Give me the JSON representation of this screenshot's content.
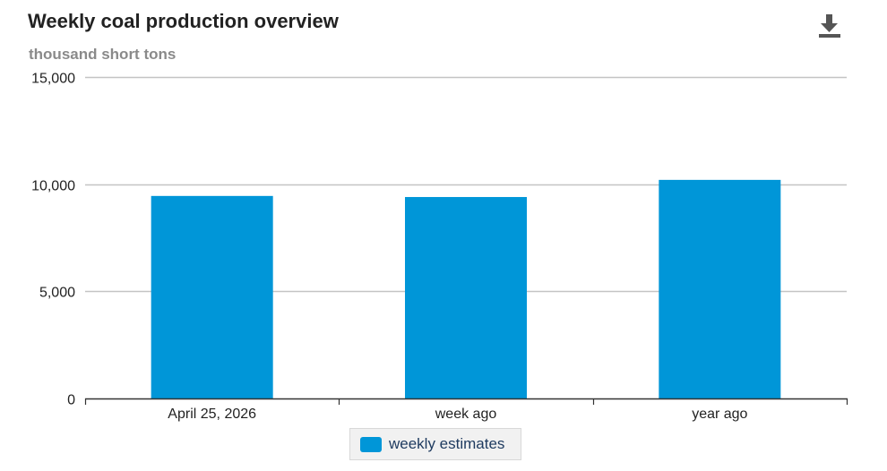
{
  "header": {
    "title": "Weekly coal production overview",
    "subtitle": "thousand short tons",
    "download_icon": "download-icon"
  },
  "colors": {
    "bar": "#0096d8",
    "grid": "#c4c4c4",
    "axis": "#333333",
    "text": "#222222"
  },
  "chart_data": {
    "type": "bar",
    "title": "Weekly coal production overview",
    "ylabel": "thousand short tons",
    "xlabel": "",
    "categories": [
      "April 25, 2026",
      "week ago",
      "year ago"
    ],
    "series": [
      {
        "name": "weekly estimates",
        "values": [
          9450,
          9400,
          10200
        ]
      }
    ],
    "ylim": [
      0,
      15000
    ],
    "yticks": [
      0,
      5000,
      10000,
      15000
    ],
    "ytick_labels": [
      "0",
      "5,000",
      "10,000",
      "15,000"
    ],
    "grid": true,
    "legend_position": "bottom-center"
  },
  "legend": {
    "label": "weekly estimates"
  }
}
